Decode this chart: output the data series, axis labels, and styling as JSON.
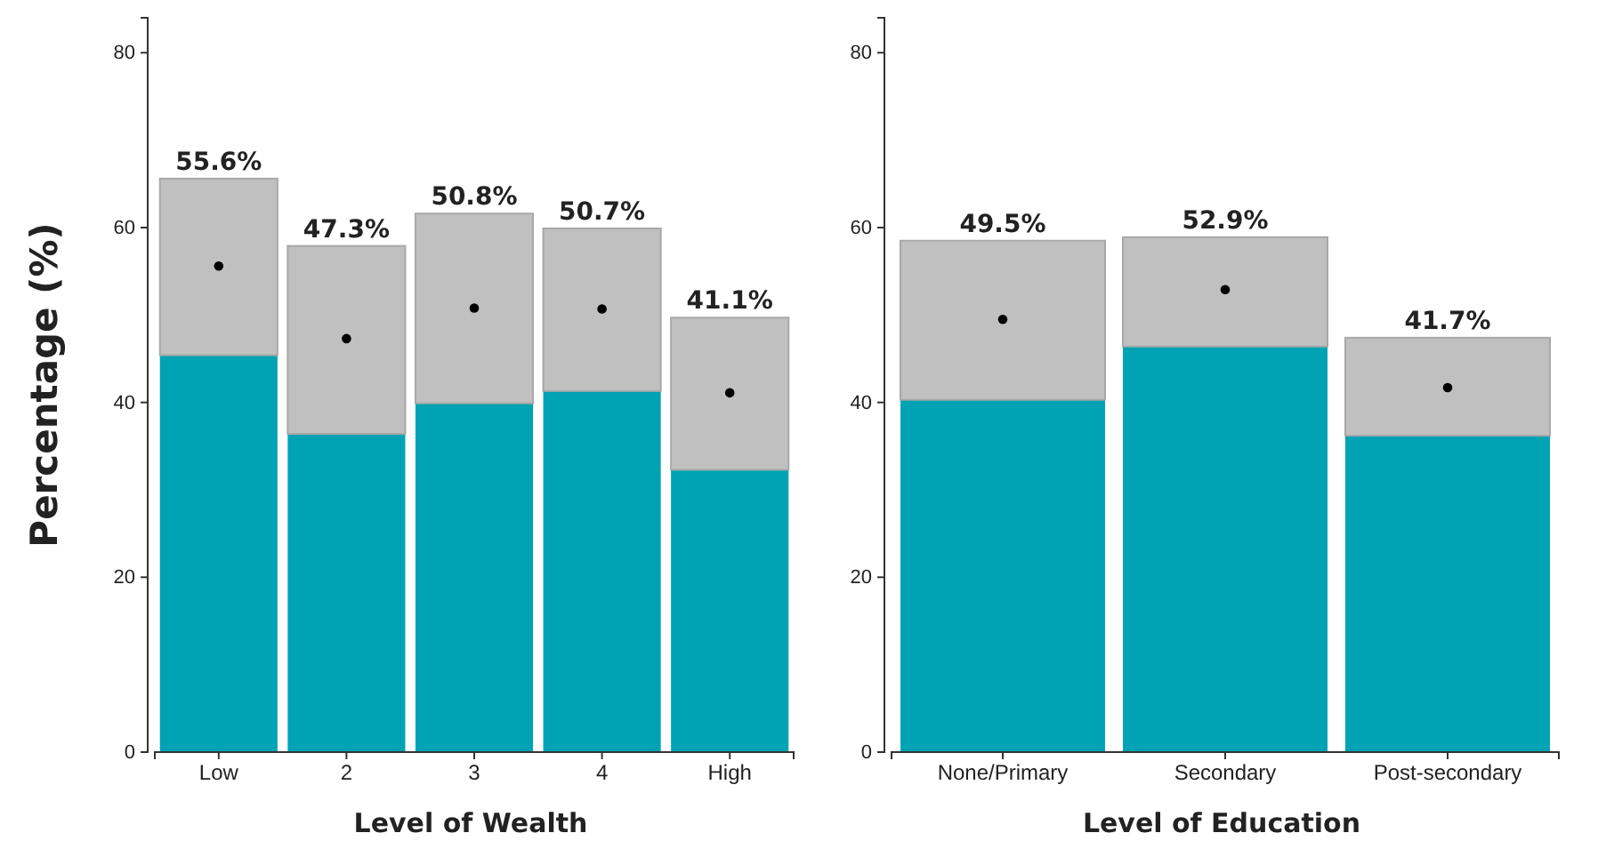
{
  "chart_data": [
    {
      "type": "bar",
      "stacked": true,
      "xlabel": "Level of Wealth",
      "ylabel": "Percentage (%)",
      "categories": [
        "Low",
        "2",
        "3",
        "4",
        "High"
      ],
      "ylim": [
        0,
        84
      ],
      "yticks": [
        0,
        20,
        40,
        60,
        80
      ],
      "grid": false,
      "legend": false,
      "series": [
        {
          "color": "#00a3b4",
          "values": [
            45.4,
            36.4,
            39.9,
            41.3,
            32.3
          ]
        },
        {
          "color": "#c0c0c0",
          "values": [
            20.2,
            21.5,
            21.7,
            18.6,
            17.4
          ]
        },
        {
          "type": "scatter",
          "color": "#000000",
          "marker": "circle",
          "values": [
            55.6,
            47.3,
            50.8,
            50.7,
            41.1
          ]
        }
      ],
      "annotations": [
        {
          "text": "55.6%",
          "x": "Low",
          "y": 65.6
        },
        {
          "text": "47.3%",
          "x": "2",
          "y": 57.9
        },
        {
          "text": "50.8%",
          "x": "3",
          "y": 61.6
        },
        {
          "text": "50.7%",
          "x": "4",
          "y": 59.9
        },
        {
          "text": "41.1%",
          "x": "High",
          "y": 49.7
        }
      ]
    },
    {
      "type": "bar",
      "stacked": true,
      "xlabel": "Level of Education",
      "categories": [
        "None/Primary",
        "Secondary",
        "Post-secondary"
      ],
      "ylim": [
        0,
        84
      ],
      "yticks": [
        0,
        20,
        40,
        60,
        80
      ],
      "grid": false,
      "legend": false,
      "series": [
        {
          "color": "#00a3b4",
          "values": [
            40.3,
            46.4,
            36.2
          ]
        },
        {
          "color": "#c0c0c0",
          "values": [
            18.2,
            12.5,
            11.2
          ]
        },
        {
          "type": "scatter",
          "color": "#000000",
          "marker": "circle",
          "values": [
            49.5,
            52.9,
            41.7
          ]
        }
      ],
      "annotations": [
        {
          "text": "49.5%",
          "x": "None/Primary",
          "y": 58.5
        },
        {
          "text": "52.9%",
          "x": "Secondary",
          "y": 58.9
        },
        {
          "text": "41.7%",
          "x": "Post-secondary",
          "y": 47.4
        }
      ]
    }
  ]
}
